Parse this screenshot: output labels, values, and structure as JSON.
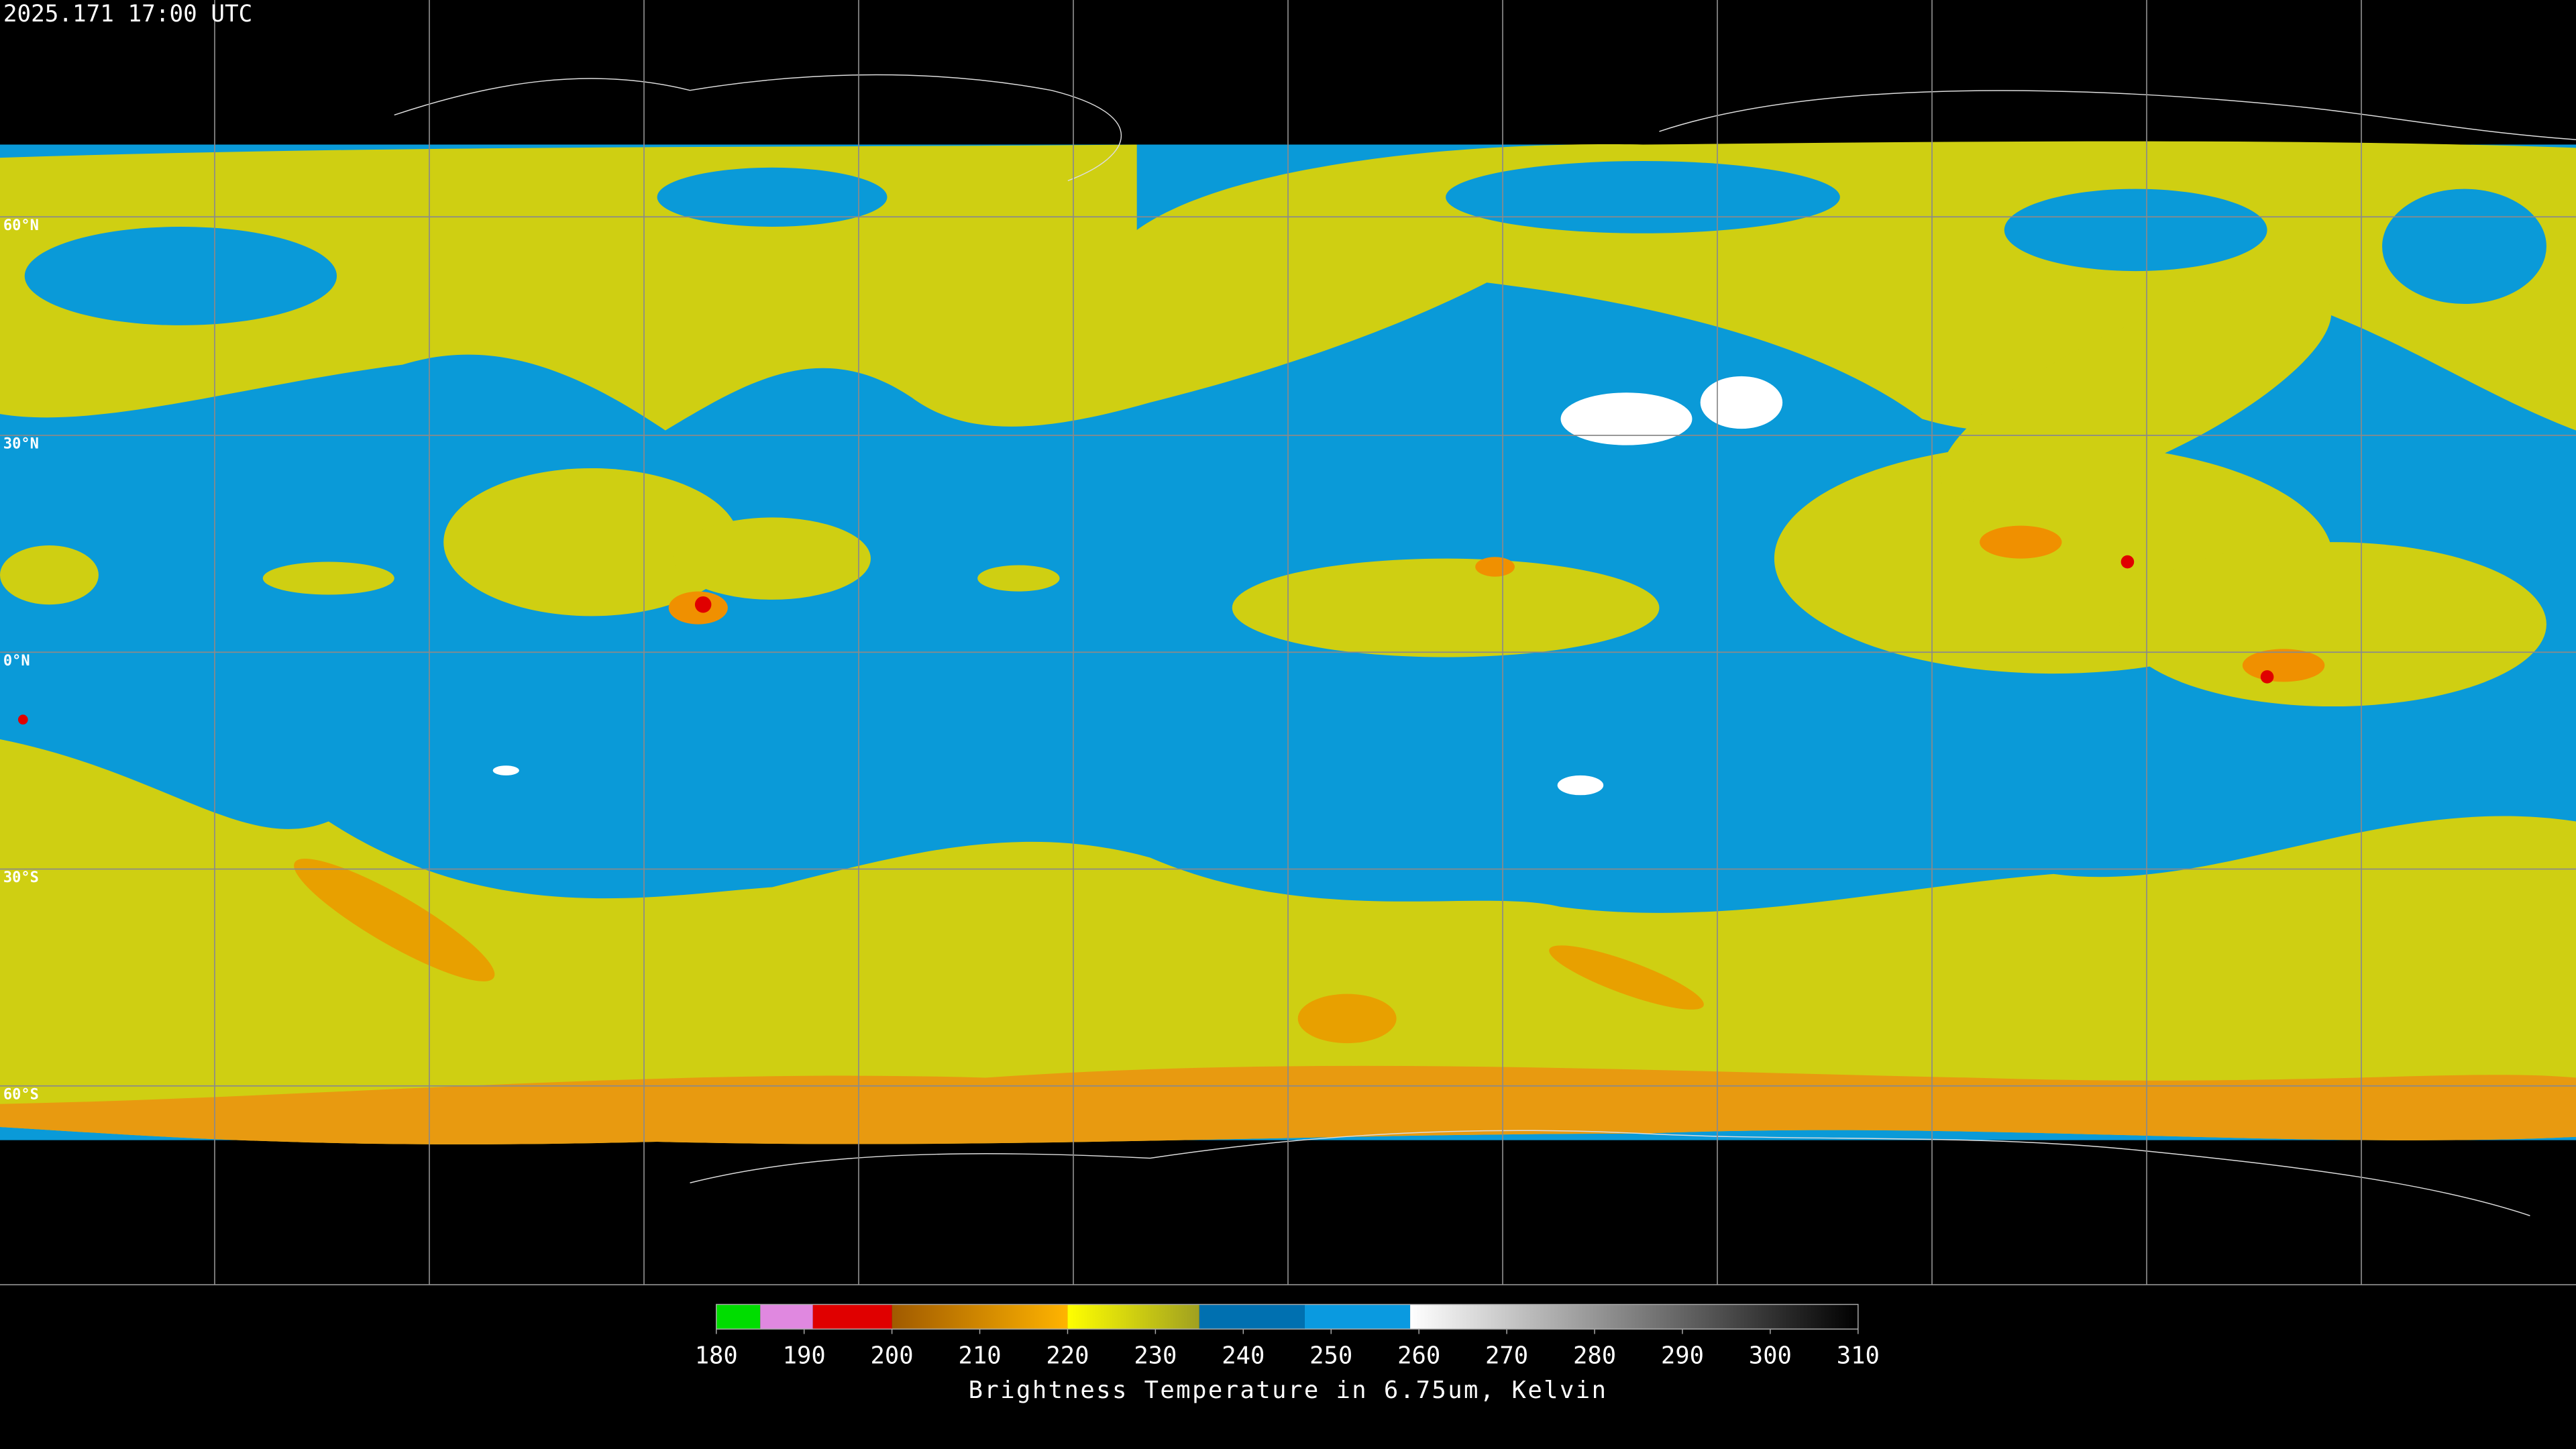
{
  "title": "2025.171 17:00 UTC",
  "lat_labels": [
    "60°N",
    "30°N",
    "0°N",
    "30°S",
    "60°S"
  ],
  "colorbar": {
    "label": "Brightness Temperature in 6.75um, Kelvin",
    "range": [
      180,
      310
    ],
    "ticks": [
      180,
      190,
      200,
      210,
      220,
      230,
      240,
      250,
      260,
      270,
      280,
      290,
      300,
      310
    ],
    "segments": [
      {
        "from": 180,
        "to": 185,
        "colors": [
          "#00dd00",
          "#00dd00"
        ]
      },
      {
        "from": 185,
        "to": 191,
        "colors": [
          "#e088e0",
          "#e088e0"
        ]
      },
      {
        "from": 191,
        "to": 200,
        "colors": [
          "#e00000",
          "#e00000"
        ]
      },
      {
        "from": 200,
        "to": 220,
        "colors": [
          "#a05a00",
          "#ffb400"
        ]
      },
      {
        "from": 220,
        "to": 235,
        "colors": [
          "#ffff00",
          "#a0a020"
        ]
      },
      {
        "from": 235,
        "to": 247,
        "colors": [
          "#0070b0",
          "#0070b0"
        ]
      },
      {
        "from": 247,
        "to": 259,
        "colors": [
          "#0a9ae0",
          "#0a9ae0"
        ]
      },
      {
        "from": 259,
        "to": 310,
        "colors": [
          "#ffffff",
          "#000000"
        ]
      }
    ]
  }
}
